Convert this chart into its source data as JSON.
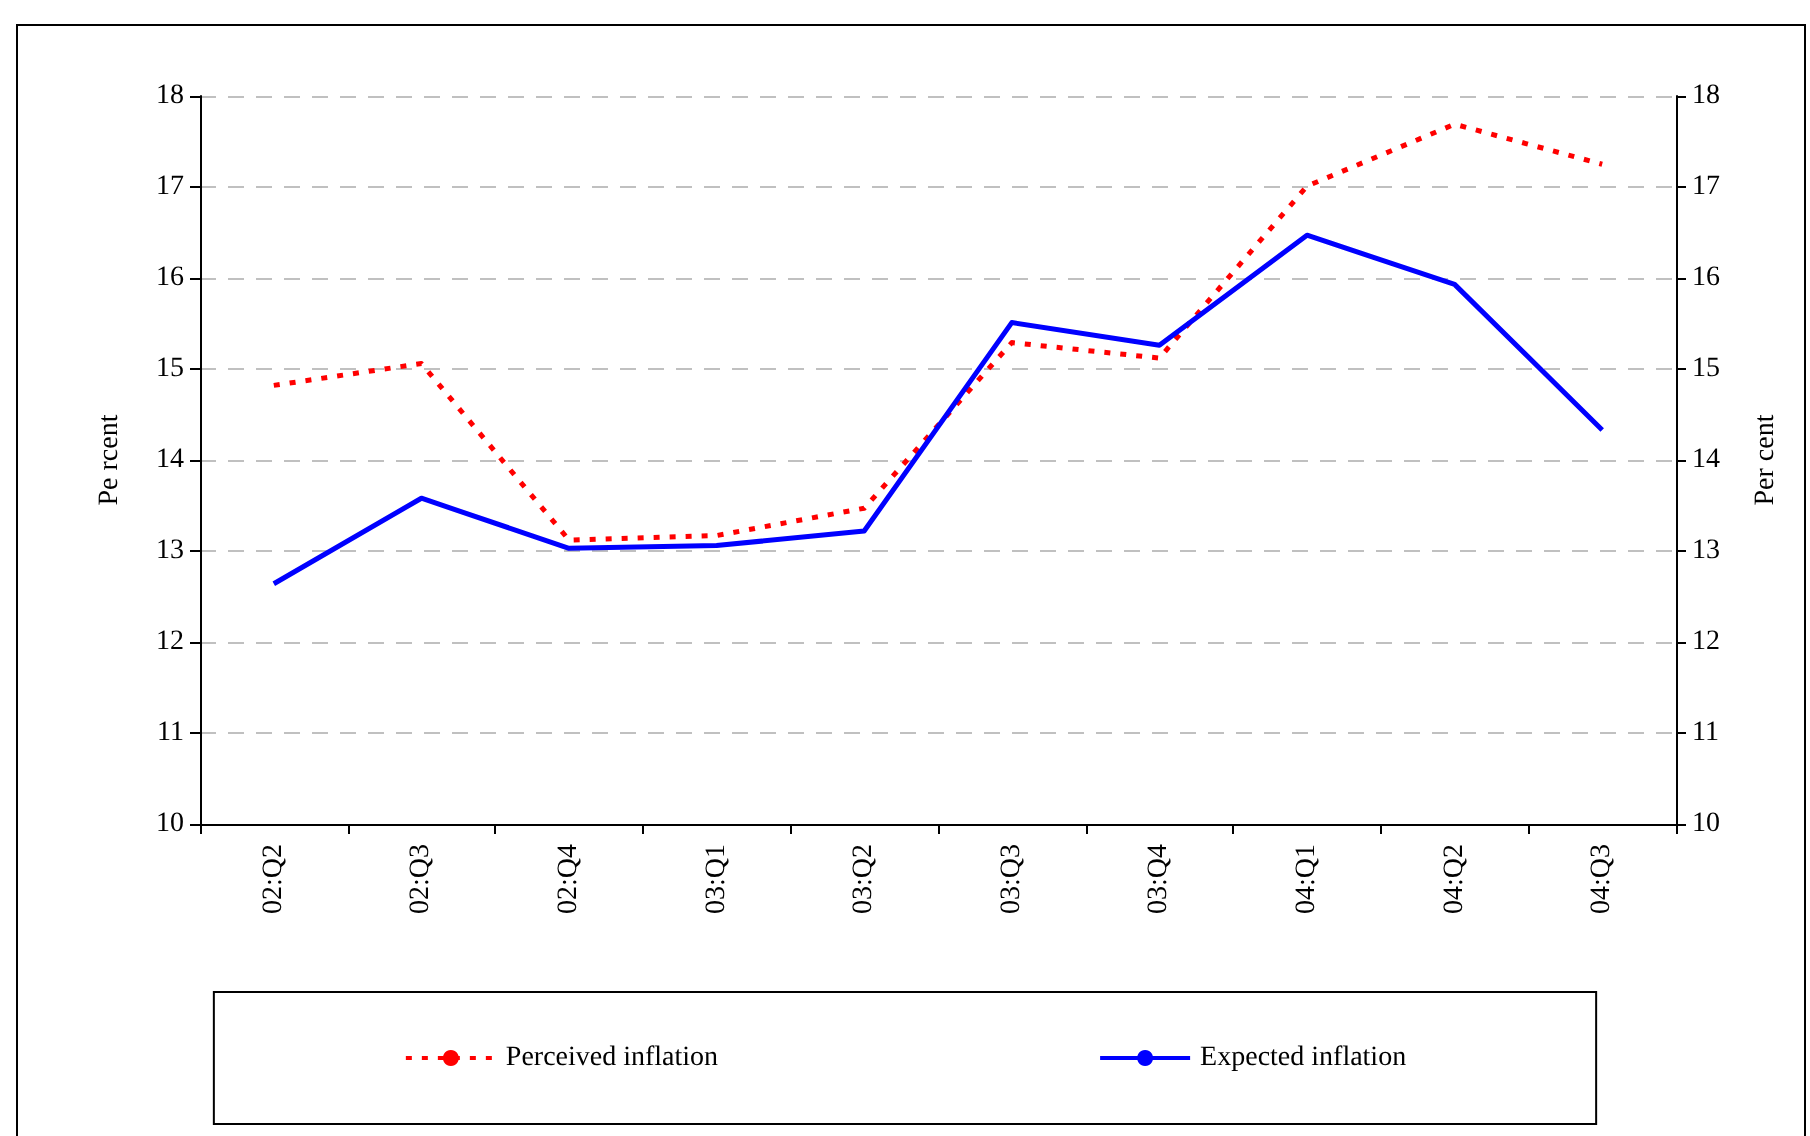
{
  "chart_data": {
    "type": "line",
    "categories": [
      "02:Q2",
      "02:Q3",
      "02:Q4",
      "03:Q1",
      "03:Q2",
      "03:Q3",
      "03:Q4",
      "04:Q1",
      "04:Q2",
      "04:Q3"
    ],
    "series": [
      {
        "name": "Perceived inflation",
        "color": "#ff0000",
        "line_style": "dotted",
        "values": [
          14.82,
          15.06,
          13.12,
          13.17,
          13.47,
          15.29,
          15.12,
          17.01,
          17.69,
          17.25
        ]
      },
      {
        "name": "Expected inflation",
        "color": "#0000ff",
        "line_style": "solid",
        "values": [
          12.64,
          13.58,
          13.03,
          13.06,
          13.22,
          15.51,
          15.26,
          16.47,
          15.93,
          14.33
        ]
      }
    ],
    "ylabel": "Pe rcent",
    "y2label": "Per cent",
    "ylim": [
      10,
      18
    ],
    "yticks": [
      10,
      11,
      12,
      13,
      14,
      15,
      16,
      17,
      18
    ],
    "y2lim": [
      10,
      18
    ],
    "y2ticks": [
      10,
      11,
      12,
      13,
      14,
      15,
      16,
      17,
      18
    ],
    "grid": "y",
    "legend": "bottom",
    "marker": "none"
  }
}
